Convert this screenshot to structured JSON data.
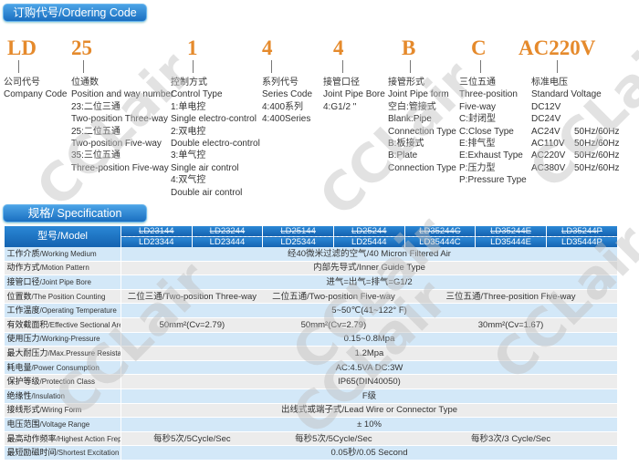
{
  "ordering": {
    "title": "订购代号/Ordering Code",
    "codes": [
      {
        "code": "LD",
        "lines": [
          "公司代号",
          "Company Code"
        ]
      },
      {
        "code": "25",
        "lines": [
          "位通数",
          "Position and way number",
          "23:二位三通",
          "Two-position Three-way",
          "25:二位五通",
          "Two-position Five-way",
          "35:三位五通",
          "Three-position Five-way"
        ]
      },
      {
        "code": "1",
        "lines": [
          "控制方式",
          "Control Type",
          "1:单电控",
          "Single electro-control",
          "2:双电控",
          "Double  electro-control",
          "3:单气控",
          "Single air control",
          "4:双气控",
          "Double air control"
        ]
      },
      {
        "code": "4",
        "lines": [
          "系列代号",
          "Series Code",
          "4:400系列",
          "4:400Series"
        ]
      },
      {
        "code": "4",
        "lines": [
          "接管口径",
          "Joint Pipe Bore",
          "4:G1/2 \""
        ]
      },
      {
        "code": "B",
        "lines": [
          "接管形式",
          "Joint Pipe form",
          "空白:管接式",
          "Blank:Pipe",
          "Connection Type",
          "B:板接式",
          "B:Plate",
          "Connection Type"
        ]
      },
      {
        "code": "C",
        "lines": [
          "三位五通",
          "Three-position",
          "Five-way",
          "C:封闭型",
          "C:Close Type",
          "E:排气型",
          "E:Exhaust Type",
          "P:压力型",
          "P:Pressure Type"
        ]
      },
      {
        "code": "AC220V",
        "lines": [
          "标准电压",
          "Standard Voltage"
        ],
        "voltages": [
          [
            "DC12V",
            ""
          ],
          [
            "DC24V",
            ""
          ],
          [
            "AC24V",
            "50Hz/60Hz"
          ],
          [
            "AC110V",
            "50Hz/60Hz"
          ],
          [
            "AC220V",
            "50Hz/60Hz"
          ],
          [
            "AC380V",
            "50Hz/60Hz"
          ]
        ]
      }
    ]
  },
  "spec": {
    "title": "规格/ Specification",
    "model_label": "型号/Model",
    "models_top": [
      "LD23144",
      "LD23244",
      "LD25144",
      "LD25244",
      "LD35244C",
      "LD35244E",
      "LD35244P"
    ],
    "models_bottom": [
      "LD23344",
      "LD23444",
      "LD25344",
      "LD25444",
      "LD35444C",
      "LD35444E",
      "LD35444P"
    ],
    "rows": [
      {
        "cn": "工作介质",
        "en": "/Working Medium",
        "cells": [
          {
            "text": "经40微米过滤的空气/40 Micron Filtered Air",
            "span": 7
          }
        ]
      },
      {
        "cn": "动作方式",
        "en": "/Motion Pattern",
        "cells": [
          {
            "text": "内部先导式/Inner Guide Type",
            "span": 7
          }
        ]
      },
      {
        "cn": "接管口径",
        "en": "/Joint Pipe Bore",
        "cells": [
          {
            "text": "进气=出气=排气=G1/2",
            "span": 7
          }
        ]
      },
      {
        "cn": "位置数",
        "en": "/The Position Counting",
        "cells": [
          {
            "text": "二位三通/Two-position Three-way",
            "span": 2
          },
          {
            "text": "二位五通/Two-position Five-way",
            "span": 2
          },
          {
            "text": "三位五通/Three-position Five-way",
            "span": 3
          }
        ]
      },
      {
        "cn": "工作温度",
        "en": "/Operating Temperature",
        "cells": [
          {
            "text": "5~50℃(41~122°  F)",
            "span": 7
          }
        ]
      },
      {
        "cn": "有效截面积",
        "en": "/Effective Sectional Area",
        "cells": [
          {
            "text": "50mm²(Cv=2.79)",
            "span": 2
          },
          {
            "text": "50mm²(Cv=2.79)",
            "span": 2
          },
          {
            "text": "30mm²(Cv=1.67)",
            "span": 3
          }
        ]
      },
      {
        "cn": "使用压力",
        "en": "/Working-Pressure",
        "cells": [
          {
            "text": "0.15~0.8Mpa",
            "span": 7
          }
        ]
      },
      {
        "cn": "最大耐压力",
        "en": "/Max.Pressure Resistance",
        "cells": [
          {
            "text": "1.2Mpa",
            "span": 7
          }
        ]
      },
      {
        "cn": "耗电量",
        "en": "/Power Consumption",
        "cells": [
          {
            "text": "AC:4.5VA  DC:3W",
            "span": 7
          }
        ]
      },
      {
        "cn": "保护等级",
        "en": "/Protection Class",
        "cells": [
          {
            "text": "IP65(DIN40050)",
            "span": 7
          }
        ]
      },
      {
        "cn": "绝缘性",
        "en": "/Insulation",
        "cells": [
          {
            "text": "F级",
            "span": 7
          }
        ]
      },
      {
        "cn": "接线形式",
        "en": "/Wiring Form",
        "cells": [
          {
            "text": "出线式或端子式/Lead Wire or Connector Type",
            "span": 7
          }
        ]
      },
      {
        "cn": "电压范围",
        "en": "/Voltage Range",
        "cells": [
          {
            "text": "± 10%",
            "span": 7
          }
        ]
      },
      {
        "cn": "最高动作频率",
        "en": "/Highest Action Frepuency",
        "cells": [
          {
            "text": "每秒5次/5Cycle/Sec",
            "span": 2
          },
          {
            "text": "每秒5次/5Cycle/Sec",
            "span": 2
          },
          {
            "text": "每秒3次/3 Cycle/Sec",
            "span": 3
          }
        ]
      },
      {
        "cn": "最短励磁时间",
        "en": "/Shortest Excitation Time",
        "cells": [
          {
            "text": "0.05秒/0.05  Second",
            "span": 7
          }
        ]
      }
    ]
  },
  "watermark": "CCLair",
  "colors": {
    "code": "#e58a2c",
    "header": "#1a6fc0",
    "row_blue": "#d3e8f8",
    "row_gray": "#ececec"
  }
}
